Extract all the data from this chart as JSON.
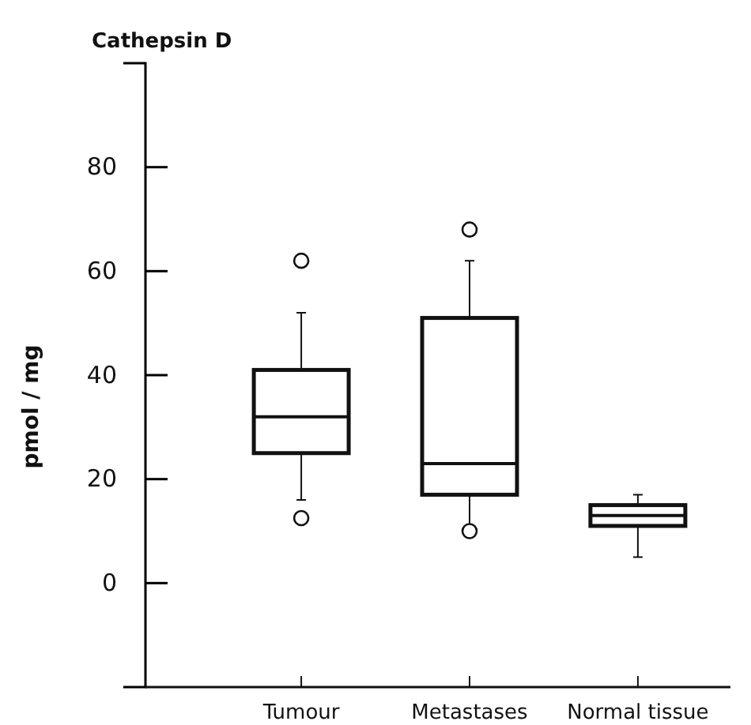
{
  "chart_data": {
    "type": "box",
    "title": "Cathepsin D",
    "ylabel": "pmol / mg",
    "categories": [
      "Tumour",
      "Metastases",
      "Normal tissue"
    ],
    "boxes": [
      {
        "low": 16,
        "q1": 25,
        "median": 32,
        "q3": 41,
        "high": 52,
        "outliers": [
          62,
          12.5
        ]
      },
      {
        "low": 11,
        "q1": 17,
        "median": 23,
        "q3": 51,
        "high": 62,
        "outliers": [
          68,
          10
        ]
      },
      {
        "low": 5,
        "q1": 11,
        "median": 13,
        "q3": 15,
        "high": 17
      }
    ],
    "ylim": [
      -20,
      100
    ],
    "yticks": [
      0,
      20,
      40,
      60,
      80
    ]
  }
}
